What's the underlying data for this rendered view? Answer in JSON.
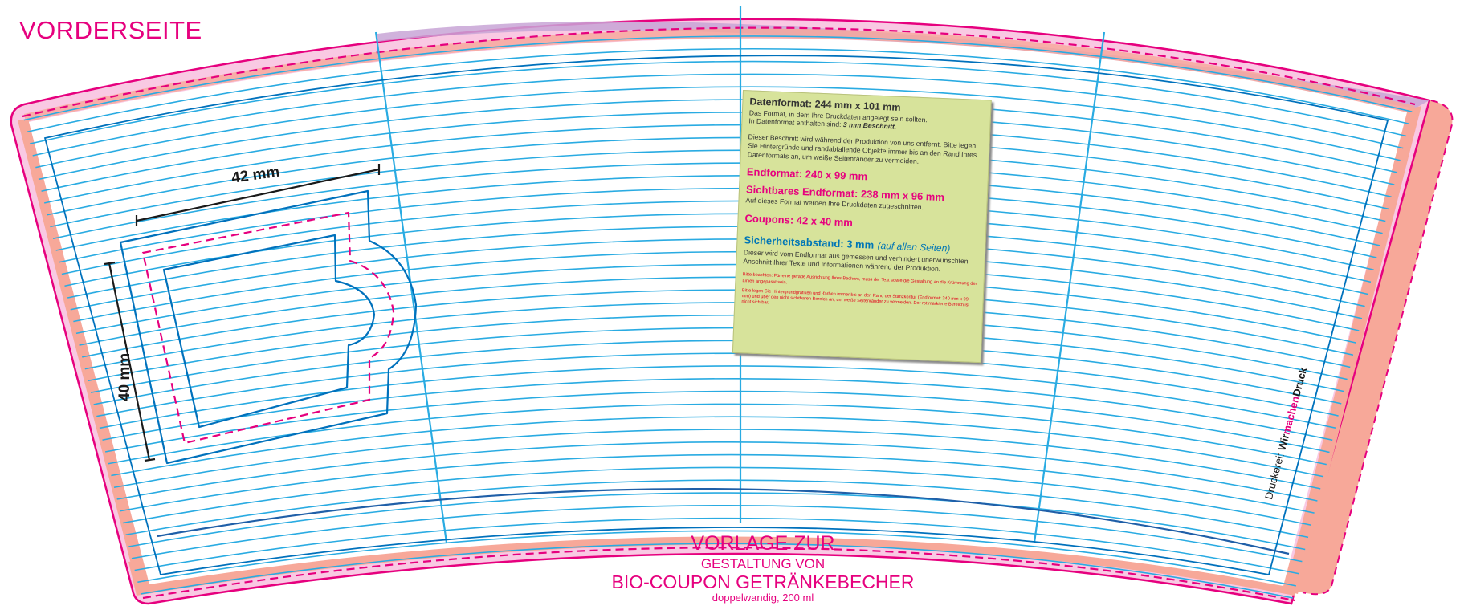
{
  "page": {
    "title": "VORDERSEITE"
  },
  "colors": {
    "magenta": "#e6007e",
    "cyan": "#29abe2",
    "dark_blue": "#0071bc",
    "salmon": "#f7a899",
    "light_pink": "#f9c9e3",
    "info_bg": "#d7e39b"
  },
  "dimensions": {
    "width_label": "42 mm",
    "height_label": "40 mm"
  },
  "info_box": {
    "datenformat_heading": "Datenformat: 244 mm x 101 mm",
    "datenformat_line1": "Das Format, in dem Ihre Druckdaten angelegt sein sollten.",
    "datenformat_line2_prefix": "In Datenformat enthalten sind: ",
    "datenformat_line2_bold": "3 mm Beschnitt.",
    "beschnitt_text": "Dieser Beschnitt wird während der Produktion von uns entfernt. Bitte legen Sie Hintergründe und randabfallende Objekte immer bis an den Rand Ihres Datenformats an, um weiße Seitenränder zu vermeiden.",
    "endformat_heading": "Endformat: 240 x 99 mm",
    "sichtbares_heading": "Sichtbares Endformat: 238 mm x 96 mm",
    "sichtbares_text": "Auf dieses Format werden Ihre Druckdaten zugeschnitten.",
    "coupons_heading": "Coupons: 42 x 40 mm",
    "sicherheit_heading": "Sicherheitsabstand: 3 mm",
    "sicherheit_suffix": "(auf allen Seiten)",
    "sicherheit_text": "Dieser wird vom Endformat aus gemessen und verhindert unerwünschten Anschnitt Ihrer Texte und Informationen während der Produktion.",
    "note1": "Bitte beachten: Für eine gerade Ausrichtung Ihres Bechers, muss der Text sowie die Gestaltung an die Krümmung der Linien angepasst sein.",
    "note2": "Bitte legen Sie Hintergrundgrafiken und -farben immer bis an den Rand der Stanzkontur (Endformat: 240 mm x 99 mm) und über den nicht sichtbaren Bereich an, um weiße Seitenränder zu vermeiden. Der rot markierte Bereich ist nicht sichtbar."
  },
  "side_text": {
    "prefix": "Druckerei: ",
    "brand_part1": "Wir",
    "brand_part2": "machen",
    "brand_part3": "Druck"
  },
  "bottom_title": {
    "line1": "VORLAGE ZUR",
    "line2": "GESTALTUNG VON",
    "line3": "BIO-COUPON GETRÄNKEBECHER",
    "line4": "doppelwandig, 200 ml"
  }
}
